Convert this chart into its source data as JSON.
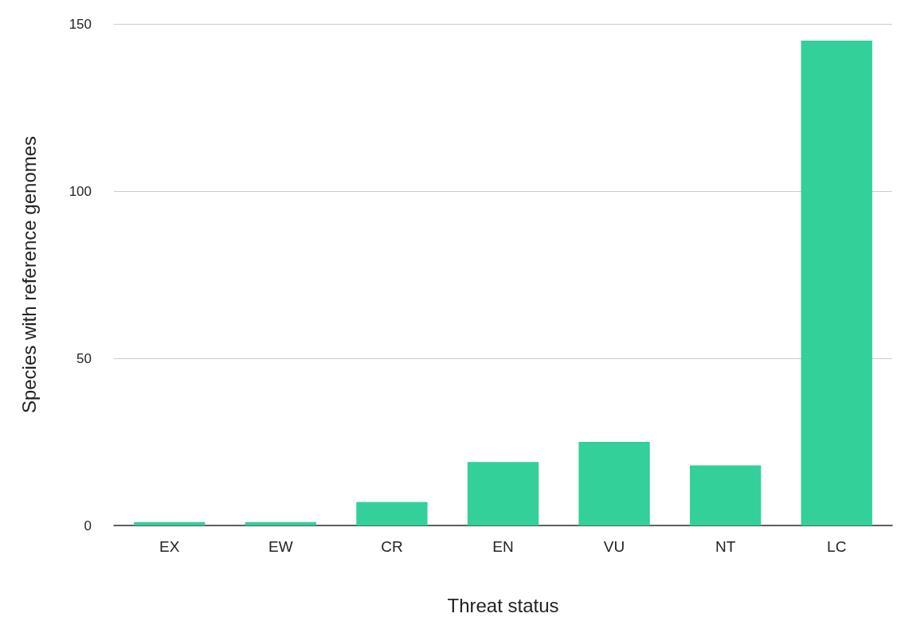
{
  "chart_data": {
    "type": "bar",
    "xlabel": "Threat status",
    "ylabel": "Species with reference genomes",
    "categories": [
      "EX",
      "EW",
      "CR",
      "EN",
      "VU",
      "NT",
      "LC"
    ],
    "values": [
      1,
      1,
      7,
      19,
      25,
      18,
      145
    ],
    "color": "#33d09a",
    "ylim": [
      0,
      150
    ],
    "yticks": [
      0,
      50,
      100,
      150
    ],
    "grid": "y"
  }
}
